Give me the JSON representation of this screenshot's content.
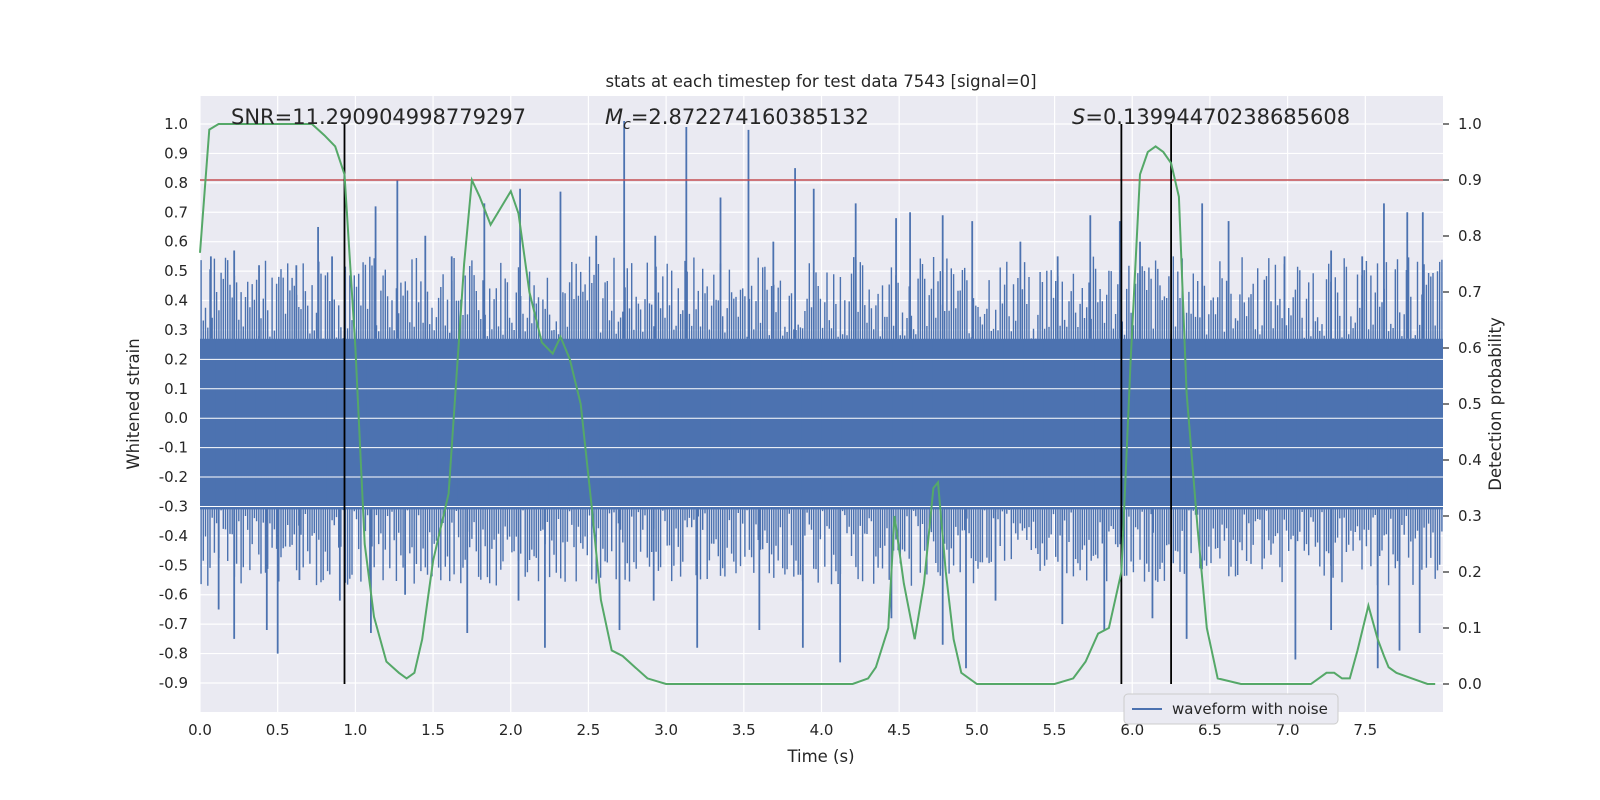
{
  "chart_data": {
    "type": "line",
    "title": "stats at each timestep for test data 7543 [signal=0]",
    "xlabel": "Time (s)",
    "ylabel": "Whitened strain",
    "y2label": "Detection probability",
    "xlim": [
      0.0,
      8.0
    ],
    "ylim": [
      -0.95,
      1.08
    ],
    "y2lim": [
      -0.05,
      1.05
    ],
    "xticks": [
      "0.0",
      "0.5",
      "1.0",
      "1.5",
      "2.0",
      "2.5",
      "3.0",
      "3.5",
      "4.0",
      "4.5",
      "5.0",
      "5.5",
      "6.0",
      "6.5",
      "7.0",
      "7.5"
    ],
    "yticks": [
      "1.0",
      "0.9",
      "0.8",
      "0.7",
      "0.6",
      "0.5",
      "0.4",
      "0.3",
      "0.2",
      "0.1",
      "0.0",
      "-0.1",
      "-0.2",
      "-0.3",
      "-0.4",
      "-0.5",
      "-0.6",
      "-0.7",
      "-0.8",
      "-0.9"
    ],
    "y2ticks": [
      "1.0",
      "0.9",
      "0.8",
      "0.7",
      "0.6",
      "0.5",
      "0.4",
      "0.3",
      "0.2",
      "0.1",
      "0.0"
    ],
    "grid": true,
    "legend": {
      "placement": "lower-right",
      "entries": [
        "waveform with noise"
      ]
    },
    "annotations": {
      "snr": "SNR=11.290904998779297",
      "mc_symbol": "M",
      "mc_sub": "c",
      "mc_value": "=2.872274160385132",
      "s_symbol": "S",
      "s_value": "=0.13994470238685608"
    },
    "colors": {
      "background": "#eaeaf2",
      "grid": "#ffffff",
      "waveform": "#4c72b0",
      "probability": "#55a868",
      "threshold": "#c44e52",
      "markers": "#000000",
      "text": "#262626"
    },
    "threshold": 0.9,
    "vertical_markers_s": [
      0.93,
      5.93,
      6.25
    ],
    "waveform": {
      "name": "waveform with noise",
      "envelope_top": 0.27,
      "envelope_bottom": -0.31,
      "peaks_up": [
        [
          0.07,
          0.55
        ],
        [
          0.22,
          0.57
        ],
        [
          0.38,
          0.52
        ],
        [
          0.62,
          0.52
        ],
        [
          0.76,
          0.65
        ],
        [
          0.85,
          0.55
        ],
        [
          1.13,
          0.72
        ],
        [
          1.27,
          0.81
        ],
        [
          1.45,
          0.62
        ],
        [
          1.62,
          0.55
        ],
        [
          1.83,
          0.73
        ],
        [
          2.06,
          0.78
        ],
        [
          2.32,
          0.77
        ],
        [
          2.55,
          0.62
        ],
        [
          2.73,
          1.01
        ],
        [
          2.93,
          0.62
        ],
        [
          3.13,
          0.99
        ],
        [
          3.35,
          0.75
        ],
        [
          3.53,
          0.98
        ],
        [
          3.69,
          0.6
        ],
        [
          3.83,
          0.85
        ],
        [
          3.95,
          0.78
        ],
        [
          4.22,
          0.73
        ],
        [
          4.48,
          0.68
        ],
        [
          4.57,
          0.7
        ],
        [
          4.78,
          0.69
        ],
        [
          4.97,
          0.67
        ],
        [
          5.28,
          0.6
        ],
        [
          5.52,
          0.55
        ],
        [
          5.73,
          0.69
        ],
        [
          5.92,
          0.67
        ],
        [
          6.05,
          0.6
        ],
        [
          6.45,
          0.73
        ],
        [
          6.62,
          0.67
        ],
        [
          6.98,
          0.55
        ],
        [
          7.28,
          0.57
        ],
        [
          7.48,
          0.55
        ],
        [
          7.62,
          0.73
        ],
        [
          7.77,
          0.7
        ],
        [
          7.87,
          0.7
        ]
      ],
      "peaks_down": [
        [
          0.12,
          -0.65
        ],
        [
          0.22,
          -0.75
        ],
        [
          0.43,
          -0.72
        ],
        [
          0.5,
          -0.8
        ],
        [
          0.64,
          -0.55
        ],
        [
          0.9,
          -0.62
        ],
        [
          1.1,
          -0.73
        ],
        [
          1.32,
          -0.6
        ],
        [
          1.72,
          -0.73
        ],
        [
          2.05,
          -0.62
        ],
        [
          2.22,
          -0.78
        ],
        [
          2.7,
          -0.72
        ],
        [
          2.92,
          -0.62
        ],
        [
          3.2,
          -0.78
        ],
        [
          3.6,
          -0.72
        ],
        [
          3.88,
          -0.78
        ],
        [
          4.12,
          -0.83
        ],
        [
          4.45,
          -0.68
        ],
        [
          4.78,
          -0.77
        ],
        [
          4.93,
          -0.85
        ],
        [
          5.12,
          -0.62
        ],
        [
          5.55,
          -0.7
        ],
        [
          5.82,
          -0.72
        ],
        [
          6.13,
          -0.68
        ],
        [
          6.35,
          -0.75
        ],
        [
          7.05,
          -0.82
        ],
        [
          7.28,
          -0.72
        ],
        [
          7.58,
          -0.85
        ],
        [
          7.72,
          -0.79
        ],
        [
          7.85,
          -0.73
        ]
      ]
    },
    "probability": {
      "t": [
        0.0,
        0.06,
        0.12,
        0.5,
        0.72,
        0.8,
        0.87,
        0.93,
        1.0,
        1.06,
        1.12,
        1.2,
        1.28,
        1.33,
        1.38,
        1.43,
        1.5,
        1.6,
        1.7,
        1.75,
        1.8,
        1.87,
        2.0,
        2.05,
        2.12,
        2.2,
        2.27,
        2.32,
        2.38,
        2.45,
        2.52,
        2.58,
        2.65,
        2.72,
        2.8,
        2.88,
        3.0,
        3.5,
        3.8,
        4.0,
        4.2,
        4.3,
        4.35,
        4.43,
        4.47,
        4.53,
        4.6,
        4.66,
        4.72,
        4.75,
        4.8,
        4.85,
        4.9,
        5.0,
        5.5,
        5.62,
        5.7,
        5.78,
        5.85,
        5.93,
        5.99,
        6.05,
        6.1,
        6.15,
        6.2,
        6.25,
        6.3,
        6.35,
        6.42,
        6.48,
        6.55,
        6.7,
        7.0,
        7.1,
        7.15,
        7.2,
        7.25,
        7.3,
        7.35,
        7.4,
        7.45,
        7.52,
        7.58,
        7.62,
        7.65,
        7.7,
        7.8,
        7.9,
        7.95
      ],
      "p": [
        0.77,
        0.99,
        1.0,
        1.0,
        1.0,
        0.98,
        0.96,
        0.91,
        0.6,
        0.25,
        0.12,
        0.04,
        0.02,
        0.01,
        0.02,
        0.08,
        0.22,
        0.34,
        0.75,
        0.9,
        0.87,
        0.82,
        0.88,
        0.84,
        0.7,
        0.61,
        0.59,
        0.62,
        0.58,
        0.5,
        0.32,
        0.15,
        0.06,
        0.05,
        0.03,
        0.01,
        0.0,
        0.0,
        0.0,
        0.0,
        0.0,
        0.01,
        0.03,
        0.1,
        0.3,
        0.18,
        0.08,
        0.18,
        0.35,
        0.36,
        0.2,
        0.08,
        0.02,
        0.0,
        0.0,
        0.01,
        0.04,
        0.09,
        0.1,
        0.2,
        0.58,
        0.91,
        0.95,
        0.96,
        0.95,
        0.93,
        0.87,
        0.52,
        0.28,
        0.1,
        0.01,
        0.0,
        0.0,
        0.0,
        0.0,
        0.01,
        0.02,
        0.02,
        0.01,
        0.01,
        0.06,
        0.14,
        0.08,
        0.05,
        0.03,
        0.02,
        0.01,
        0.0,
        0.0
      ]
    }
  }
}
